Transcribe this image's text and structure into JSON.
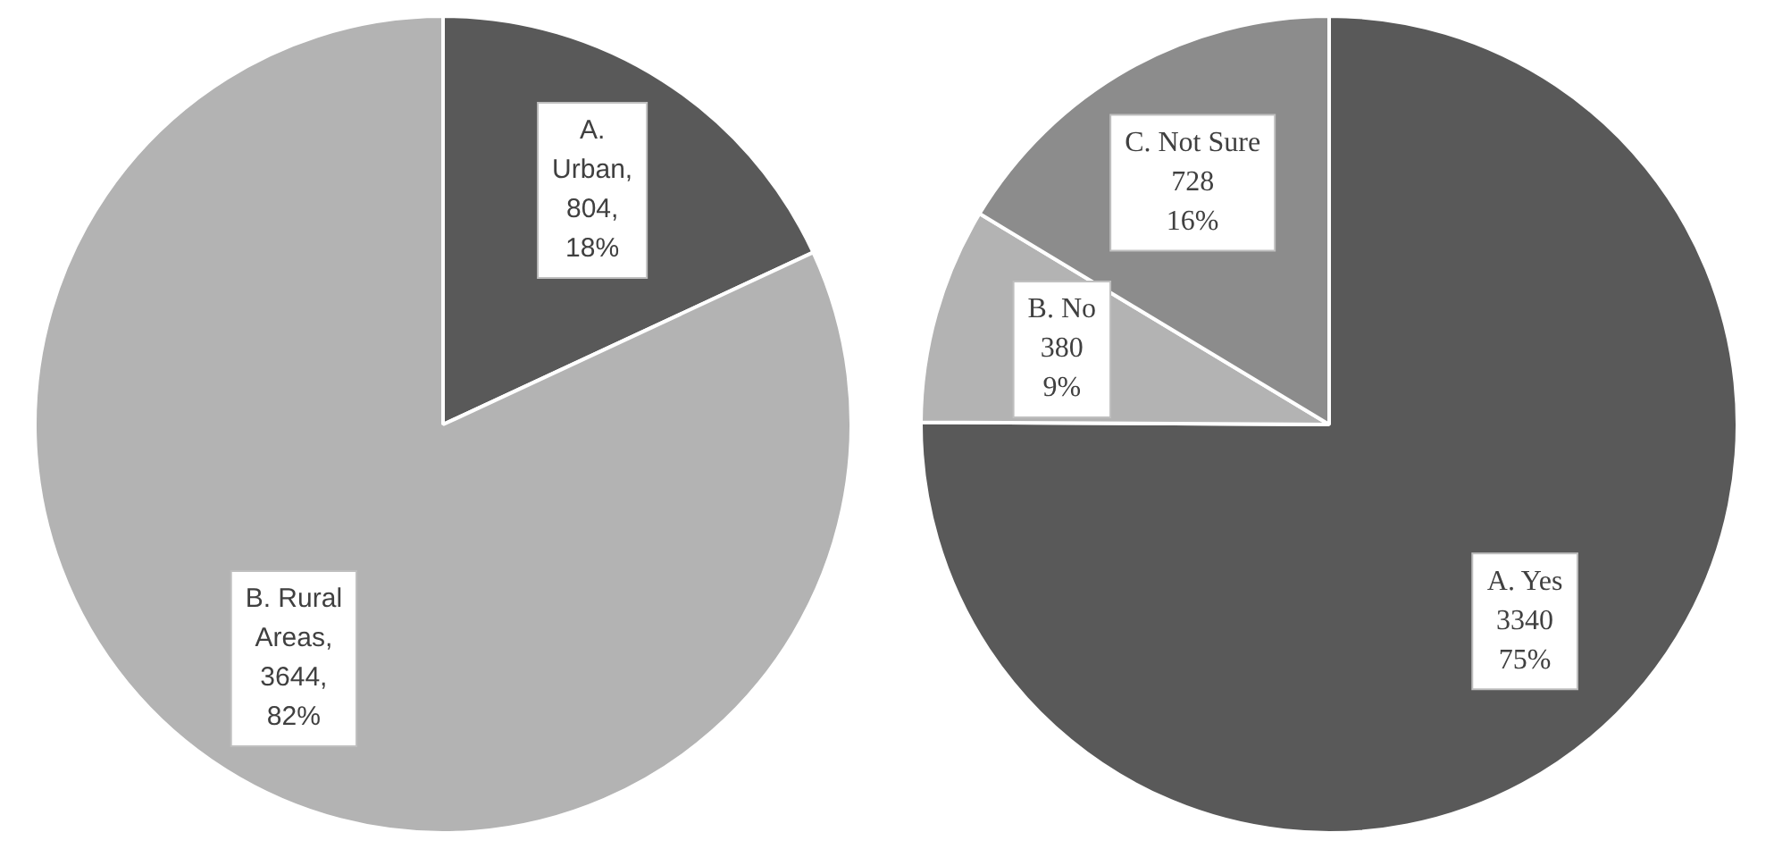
{
  "chart_data": [
    {
      "type": "pie",
      "categories": [
        "A. Urban",
        "B. Rural Areas"
      ],
      "values": [
        804,
        3644
      ],
      "colors": [
        "#595959",
        "#b3b3b3"
      ],
      "value_labels": [
        ", 804, 18%",
        ", 3644, 82%"
      ],
      "legend": false
    },
    {
      "type": "pie",
      "categories": [
        "A. Yes",
        "B. No",
        "C. Not Sure"
      ],
      "values": [
        3340,
        380,
        728
      ],
      "colors": [
        "#595959",
        "#b3b3b3",
        "#8c8c8c"
      ],
      "value_labels": [
        "3340 75%",
        "380 9%",
        "728 16%"
      ],
      "legend": false
    }
  ]
}
